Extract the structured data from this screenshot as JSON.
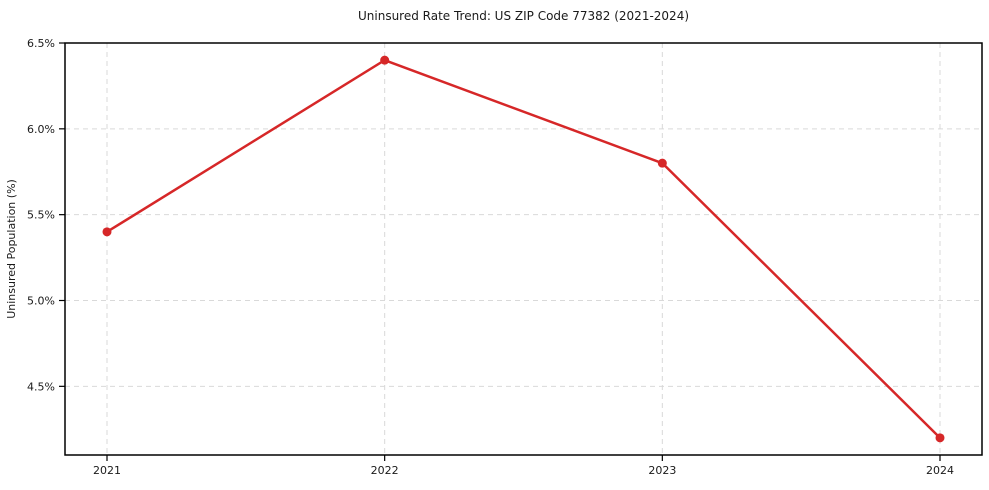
{
  "figure": {
    "background": "#ffffff"
  },
  "chart_data": {
    "type": "line",
    "title": "Uninsured Rate Trend: US ZIP Code 77382 (2021-2024)",
    "xlabel": "",
    "ylabel": "Uninsured Population (%)",
    "categories": [
      "2021",
      "2022",
      "2023",
      "2024"
    ],
    "series": [
      {
        "name": "uninsured-rate",
        "values": [
          5.4,
          6.4,
          5.8,
          4.2
        ]
      }
    ],
    "y_ticks": [
      4.5,
      5.0,
      5.5,
      6.0,
      6.5
    ],
    "y_tick_labels": [
      "4.5%",
      "5.0%",
      "5.5%",
      "6.0%",
      "6.5%"
    ],
    "ylim": [
      4.1,
      6.5
    ],
    "grid": true,
    "grid_style": "dashed",
    "legend": "none",
    "colors": {
      "line": "#d62728",
      "marker": "#d62728",
      "grid": "#d9d9d9",
      "spine": "#000000",
      "text": "#1a1a1a",
      "background": "#ffffff"
    }
  }
}
